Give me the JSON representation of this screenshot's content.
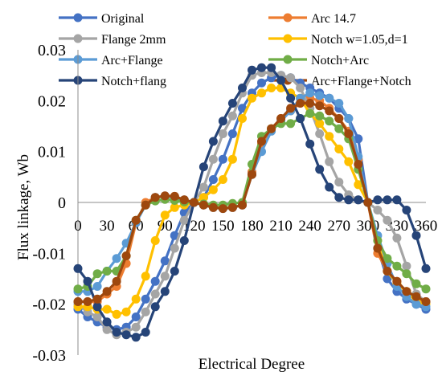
{
  "chart_data": {
    "type": "line",
    "title": "",
    "xlabel": "Electrical Degree",
    "ylabel": "Flux linkage,  Wb",
    "xlim": [
      0,
      360
    ],
    "ylim": [
      -0.03,
      0.03
    ],
    "x_ticks": [
      0,
      30,
      60,
      90,
      120,
      150,
      180,
      210,
      240,
      270,
      300,
      330,
      360
    ],
    "y_ticks": [
      {
        "value": 0.03,
        "label": "0.03"
      },
      {
        "value": 0.02,
        "label": "0.02"
      },
      {
        "value": 0.01,
        "label": "0.01"
      },
      {
        "value": 0,
        "label": "0"
      },
      {
        "value": -0.01,
        "label": "-0.01"
      },
      {
        "value": -0.02,
        "label": "-0.02"
      },
      {
        "value": -0.03,
        "label": "-0.03"
      }
    ],
    "grid": false,
    "legend_position": "top",
    "x": [
      0,
      10,
      20,
      30,
      40,
      50,
      60,
      70,
      80,
      90,
      100,
      110,
      120,
      130,
      140,
      150,
      160,
      170,
      180,
      190,
      200,
      210,
      220,
      230,
      240,
      250,
      260,
      270,
      280,
      290,
      300,
      310,
      320,
      330,
      340,
      350,
      360
    ],
    "series": [
      {
        "name": "Original",
        "color": "#4472C4",
        "values": [
          -0.021,
          -0.0225,
          -0.0235,
          -0.0245,
          -0.025,
          -0.0245,
          -0.0225,
          -0.019,
          -0.0155,
          -0.0115,
          -0.0065,
          -0.002,
          0.0,
          0.001,
          0.0045,
          0.0085,
          0.0135,
          0.0185,
          0.0215,
          0.0235,
          0.0245,
          0.025,
          0.0245,
          0.0235,
          0.0225,
          0.0215,
          0.0205,
          0.0185,
          0.0165,
          0.0125,
          0.0,
          -0.009,
          -0.015,
          -0.0175,
          -0.019,
          -0.02,
          -0.021
        ]
      },
      {
        "name": "Arc 14.7",
        "color": "#ED7D31",
        "values": [
          -0.0195,
          -0.0195,
          -0.0195,
          -0.018,
          -0.0165,
          -0.012,
          -0.004,
          0.0,
          0.001,
          0.0012,
          0.0012,
          0.0005,
          0.0,
          -0.0005,
          -0.001,
          -0.001,
          -0.001,
          -0.0005,
          0.006,
          0.0115,
          0.0145,
          0.0165,
          0.018,
          0.0195,
          0.0205,
          0.02,
          0.0185,
          0.0165,
          0.014,
          0.0085,
          0.0,
          -0.01,
          -0.0135,
          -0.0155,
          -0.0175,
          -0.019,
          -0.0195
        ]
      },
      {
        "name": "Flange 2mm",
        "color": "#A5A5A5",
        "values": [
          -0.02,
          -0.0215,
          -0.0225,
          -0.025,
          -0.026,
          -0.0255,
          -0.0245,
          -0.0215,
          -0.018,
          -0.0145,
          -0.009,
          -0.0035,
          0.0,
          0.003,
          0.0085,
          0.0135,
          0.017,
          0.0215,
          0.025,
          0.0255,
          0.0255,
          0.025,
          0.0245,
          0.0225,
          0.0185,
          0.0135,
          0.008,
          0.004,
          0.0015,
          0.0005,
          0.0,
          -0.0015,
          -0.0035,
          -0.007,
          -0.0125,
          -0.018,
          -0.0195
        ]
      },
      {
        "name": "Notch w=1.05,d=1",
        "color": "#FFC000",
        "values": [
          -0.0205,
          -0.0205,
          -0.021,
          -0.021,
          -0.022,
          -0.0215,
          -0.019,
          -0.0145,
          -0.0075,
          -0.0025,
          -0.001,
          -0.0005,
          0.0,
          0.001,
          0.0025,
          0.0045,
          0.0085,
          0.0165,
          0.0205,
          0.0215,
          0.0225,
          0.0225,
          0.0215,
          0.0205,
          0.0175,
          0.0155,
          0.013,
          0.0105,
          0.008,
          0.0035,
          0.0,
          -0.0075,
          -0.0135,
          -0.016,
          -0.0175,
          -0.0195,
          -0.02
        ]
      },
      {
        "name": "Arc+Flange",
        "color": "#5B9BD5",
        "values": [
          -0.0175,
          -0.0175,
          -0.0165,
          -0.0135,
          -0.011,
          -0.008,
          -0.004,
          -0.0005,
          0.001,
          0.0012,
          0.001,
          0.0005,
          0.0,
          -0.0005,
          -0.001,
          -0.0012,
          -0.001,
          -0.0005,
          0.0055,
          0.01,
          0.014,
          0.016,
          0.018,
          0.0205,
          0.0215,
          0.021,
          0.0205,
          0.0195,
          0.0165,
          0.009,
          0.0,
          -0.0065,
          -0.012,
          -0.0165,
          -0.0185,
          -0.02,
          -0.0205
        ]
      },
      {
        "name": "Notch+Arc",
        "color": "#70AD47",
        "values": [
          -0.017,
          -0.0165,
          -0.014,
          -0.0135,
          -0.0135,
          -0.0105,
          -0.0035,
          -0.0005,
          0.0003,
          0.0006,
          0.0004,
          0.0001,
          0.0,
          -0.0003,
          -0.0005,
          -0.0005,
          -0.0002,
          0.0,
          0.0075,
          0.013,
          0.0145,
          0.0155,
          0.0155,
          0.0165,
          0.0175,
          0.017,
          0.016,
          0.0145,
          0.0125,
          0.0065,
          0.0,
          -0.0075,
          -0.011,
          -0.0125,
          -0.014,
          -0.016,
          -0.017
        ]
      },
      {
        "name": "Notch+flang",
        "color": "#264478",
        "values": [
          -0.013,
          -0.0155,
          -0.0205,
          -0.0235,
          -0.0255,
          -0.026,
          -0.0265,
          -0.0255,
          -0.0205,
          -0.0175,
          -0.0135,
          -0.0075,
          0.0,
          0.007,
          0.012,
          0.016,
          0.0195,
          0.0225,
          0.026,
          0.0265,
          0.0265,
          0.024,
          0.0205,
          0.0165,
          0.0115,
          0.0065,
          0.003,
          0.001,
          0.0005,
          0.0005,
          0.0,
          0.0005,
          0.0005,
          0.0005,
          -0.0015,
          -0.0065,
          -0.013
        ]
      },
      {
        "name": "Arc+Flange+Notch",
        "color": "#9E480E",
        "values": [
          -0.0195,
          -0.0195,
          -0.019,
          -0.0175,
          -0.0155,
          -0.0105,
          -0.0035,
          -0.0005,
          0.001,
          0.0013,
          0.0012,
          0.0005,
          0.0,
          -0.0005,
          -0.001,
          -0.0012,
          -0.001,
          -0.0005,
          0.0055,
          0.012,
          0.0145,
          0.0165,
          0.0185,
          0.0195,
          0.0195,
          0.019,
          0.018,
          0.0165,
          0.0135,
          0.0075,
          0.0,
          -0.009,
          -0.0135,
          -0.0155,
          -0.0175,
          -0.0185,
          -0.0195
        ]
      }
    ]
  }
}
